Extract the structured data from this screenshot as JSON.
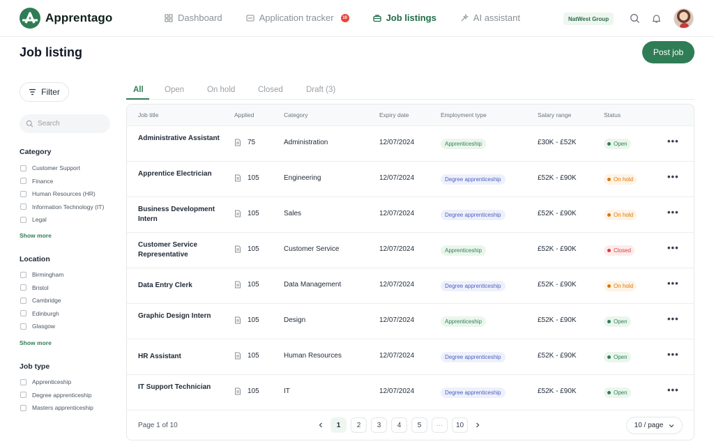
{
  "header": {
    "brand": "Apprentago",
    "nav": [
      {
        "label": "Dashboard",
        "icon": "dashboard-icon"
      },
      {
        "label": "Application tracker",
        "icon": "tracker-icon",
        "badge": "10"
      },
      {
        "label": "Job listings",
        "icon": "briefcase-icon",
        "active": true
      },
      {
        "label": "AI assistant",
        "icon": "ai-sparkle-icon"
      }
    ],
    "org": "NatWest Group"
  },
  "page": {
    "title": "Job listing",
    "post_job_label": "Post job"
  },
  "sidebar": {
    "filter_label": "Filter",
    "search_placeholder": "Search",
    "category": {
      "title": "Category",
      "items": [
        "Customer Support",
        "Finance",
        "Human Resources (HR)",
        "Information Technology (IT)",
        "Legal"
      ],
      "show_more": "Show more"
    },
    "location": {
      "title": "Location",
      "items": [
        "Birmingham",
        "Bristol",
        "Cambridge",
        "Edinburgh",
        "Glasgow"
      ],
      "show_more": "Show more"
    },
    "job_type": {
      "title": "Job type",
      "items": [
        "Apprenticeship",
        "Degree apprenticeship",
        "Masters apprenticeship"
      ]
    }
  },
  "tabs": [
    "All",
    "Open",
    "On hold",
    "Closed",
    "Draft (3)"
  ],
  "table": {
    "columns": [
      "Job title",
      "Applied",
      "Category",
      "Expiry date",
      "Employment type",
      "Salary range",
      "Status"
    ],
    "rows": [
      {
        "title": "Administrative Assistant",
        "applied": "75",
        "category": "Administration",
        "expiry": "12/07/2024",
        "employment": "Apprenticeship",
        "emp_kind": "appr",
        "salary": "£30K - £52K",
        "status": "Open",
        "status_kind": "open"
      },
      {
        "title": "Apprentice Electrician",
        "applied": "105",
        "category": "Engineering",
        "expiry": "12/07/2024",
        "employment": "Degree apprenticeship",
        "emp_kind": "degree",
        "salary": "£52K - £90K",
        "status": "On hold",
        "status_kind": "hold"
      },
      {
        "title": "Business Development Intern",
        "applied": "105",
        "category": "Sales",
        "expiry": "12/07/2024",
        "employment": "Degree apprenticeship",
        "emp_kind": "degree",
        "salary": "£52K - £90K",
        "status": "On hold",
        "status_kind": "hold"
      },
      {
        "title": "Customer Service Representative",
        "applied": "105",
        "category": "Customer Service",
        "expiry": "12/07/2024",
        "employment": "Apprenticeship",
        "emp_kind": "appr",
        "salary": "£52K - £90K",
        "status": "Closed",
        "status_kind": "closed"
      },
      {
        "title": "Data Entry Clerk",
        "applied": "105",
        "category": "Data Management",
        "expiry": "12/07/2024",
        "employment": "Degree apprenticeship",
        "emp_kind": "degree",
        "salary": "£52K - £90K",
        "status": "On hold",
        "status_kind": "hold"
      },
      {
        "title": "Graphic Design Intern",
        "applied": "105",
        "category": "Design",
        "expiry": "12/07/2024",
        "employment": "Apprenticeship",
        "emp_kind": "appr",
        "salary": "£52K - £90K",
        "status": "Open",
        "status_kind": "open"
      },
      {
        "title": "HR Assistant",
        "applied": "105",
        "category": "Human Resources",
        "expiry": "12/07/2024",
        "employment": "Degree apprenticeship",
        "emp_kind": "degree",
        "salary": "£52K - £90K",
        "status": "Open",
        "status_kind": "open"
      },
      {
        "title": "IT Support Technician",
        "applied": "105",
        "category": "IT",
        "expiry": "12/07/2024",
        "employment": "Degree apprenticeship",
        "emp_kind": "degree",
        "salary": "£52K - £90K",
        "status": "Open",
        "status_kind": "open"
      }
    ],
    "more_label": "•••"
  },
  "pagination": {
    "page_info": "Page 1 of 10",
    "pages": [
      "1",
      "2",
      "3",
      "4",
      "5",
      "···",
      "10"
    ],
    "current": "1",
    "per_page": "10 / page"
  },
  "colors": {
    "accent": "#2f7d55",
    "open_bg": "#eaf6ec",
    "open_fg": "#2f7d55",
    "hold_bg": "#fff3e6",
    "hold_fg": "#d97706",
    "closed_bg": "#fdecec",
    "closed_fg": "#dc3c3c"
  }
}
